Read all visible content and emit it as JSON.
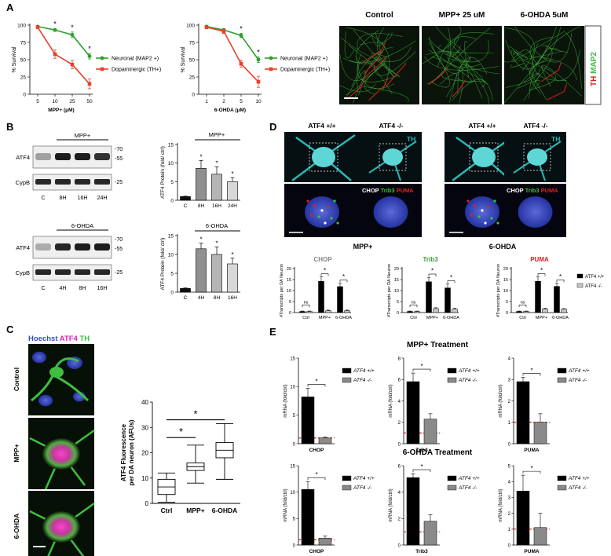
{
  "panels": {
    "A": "A",
    "B": "B",
    "C": "C",
    "D": "D",
    "E": "E"
  },
  "colors": {
    "neuronal": "#2ca02c",
    "dopaminergic": "#e8402a",
    "ko_bar": "#8a8a8a",
    "wt_bar": "#000000",
    "ctrl_line": "#e02020",
    "ap": "#2bb5b5",
    "th_red": "#e02020",
    "map2_green": "#3fbf3f",
    "puma_red": "#d62020",
    "trib3_green": "#3a9a3a",
    "chop_gray": "#888888",
    "hoechst_blue": "#3050d0",
    "atf4_magenta": "#e020c0"
  },
  "panelA": {
    "ylabel": "% Survival",
    "charts": [
      {
        "xlabel": "MPP+ (μM)",
        "ticks": [
          "5",
          "10",
          "25",
          "50"
        ],
        "yticks": [
          "0",
          "25",
          "50",
          "75",
          "100"
        ],
        "series": [
          {
            "name": "Neuronal (MAP2 +)",
            "values": [
              98,
              93,
              86,
              55
            ],
            "err": [
              1,
              2,
              4,
              4
            ],
            "star": [
              false,
              true,
              true,
              true
            ]
          },
          {
            "name": "Dopaminergic (TH+)",
            "values": [
              97,
              58,
              43,
              15
            ],
            "err": [
              1,
              6,
              6,
              7
            ],
            "star": [
              false,
              false,
              false,
              false
            ]
          }
        ]
      },
      {
        "xlabel": "6-OHDA (μM)",
        "ticks": [
          "1",
          "2",
          "5",
          "10"
        ],
        "yticks": [
          "0",
          "25",
          "50",
          "75",
          "100"
        ],
        "series": [
          {
            "name": "Neuronal (MAP2 +)",
            "values": [
              98,
              93,
              85,
              50
            ],
            "err": [
              1,
              2,
              3,
              4
            ],
            "star": [
              false,
              false,
              true,
              true
            ]
          },
          {
            "name": "Dopaminergic (TH+)",
            "values": [
              97,
              91,
              44,
              18
            ],
            "err": [
              1,
              3,
              5,
              8
            ],
            "star": [
              false,
              false,
              false,
              false
            ]
          }
        ]
      }
    ],
    "img_labels": [
      "Control",
      "MPP+ 25 uM",
      "6-OHDA  5uM"
    ],
    "side_th": "TH",
    "side_map2": "MAP2"
  },
  "panelB": {
    "blots": [
      {
        "treat": "MPP+",
        "lanes": [
          "C",
          "8H",
          "16H",
          "24H"
        ],
        "rows": [
          "ATF4",
          "CypB"
        ],
        "mw": [
          "-70",
          "-55",
          "-25"
        ]
      },
      {
        "treat": "6-OHDA",
        "lanes": [
          "C",
          "4H",
          "8H",
          "16H"
        ],
        "rows": [
          "ATF4",
          "CypB"
        ],
        "mw": [
          "-70",
          "-55",
          "-25"
        ]
      }
    ],
    "charts": [
      {
        "treat": "MPP+",
        "ylabel": "ATF4 Protein (fold/ ctrl)",
        "categories": [
          "C",
          "8H",
          "16H",
          "24H"
        ],
        "values": [
          1,
          8.6,
          7.0,
          5.0
        ],
        "err": [
          0.1,
          2.1,
          2.0,
          1.1
        ],
        "star": [
          false,
          true,
          true,
          true
        ],
        "yticks": [
          "0",
          "5",
          "10",
          "15"
        ],
        "ylim": [
          0,
          15
        ],
        "fills": [
          "#111111",
          "#909090",
          "#b5b5b5",
          "#d8d8d8"
        ]
      },
      {
        "treat": "6-OHDA",
        "ylabel": "ATF4 Protein (fold/ ctrl)",
        "categories": [
          "C",
          "4H",
          "8H",
          "16H"
        ],
        "values": [
          1,
          11.5,
          10.0,
          7.5
        ],
        "err": [
          0.1,
          1.5,
          2.0,
          1.5
        ],
        "star": [
          false,
          true,
          true,
          true
        ],
        "yticks": [
          "0",
          "5",
          "10",
          "15"
        ],
        "ylim": [
          0,
          15
        ],
        "fills": [
          "#111111",
          "#909090",
          "#b5b5b5",
          "#d8d8d8"
        ]
      }
    ]
  },
  "panelC": {
    "legend": {
      "hoechst": "Hoechst",
      "atf4": "ATF4",
      "th": "TH"
    },
    "img_labels": [
      "Control",
      "MPP+",
      "6-OHDA"
    ],
    "chart": {
      "type": "box",
      "ylabel_1": "ATF4 Fluorescence",
      "ylabel_2": "per DA neuron (AFUs)",
      "categories": [
        "Ctrl",
        "MPP+",
        "6-OHDA"
      ],
      "yticks": [
        "0",
        "10",
        "20",
        "30",
        "40"
      ],
      "ylim": [
        0,
        40
      ],
      "boxes": [
        {
          "min": 0.5,
          "q1": 3.5,
          "median": 6.5,
          "q3": 9.5,
          "max": 12
        },
        {
          "min": 8,
          "q1": 13,
          "median": 14.5,
          "q3": 16,
          "max": 23
        },
        {
          "min": 9.5,
          "q1": 18,
          "median": 21,
          "q3": 24,
          "max": 31.5
        }
      ],
      "sig_star": "*"
    }
  },
  "panelD": {
    "col_labels": [
      "ATF4 +/+",
      "ATF4 -/-",
      "ATF4 +/+",
      "ATF4 -/-"
    ],
    "th_label": "TH",
    "chop_label": "CHOP",
    "trib3_label": "Trib3",
    "puma_label": "PUMA",
    "treat_labels": [
      "MPP+",
      "6-OHDA"
    ],
    "charts": [
      {
        "title": "CHOP",
        "ylabel": "#Transcripts per DA Neuron",
        "categories": [
          "Ctrl",
          "MPP+",
          "6-OHDA"
        ],
        "yticks": [
          "0",
          "5",
          "10",
          "15",
          "20"
        ],
        "ylim": [
          0,
          20
        ],
        "series": [
          {
            "name": "ATF4 +/+",
            "values": [
              0.5,
              14.2,
              11.8
            ],
            "err": [
              0.2,
              2.0,
              1.5
            ]
          },
          {
            "name": "ATF4 -/-",
            "values": [
              0.5,
              0.8,
              0.8
            ],
            "err": [
              0.2,
              0.3,
              0.3
            ]
          }
        ],
        "sig": [
          "ns",
          "*",
          "*"
        ]
      },
      {
        "title": "Trib3",
        "ylabel": "#Transcripts per DA Neuron",
        "categories": [
          "Ctrl",
          "MPP+",
          "6-OHDA"
        ],
        "yticks": [
          "0",
          "5",
          "10",
          "15",
          "20"
        ],
        "ylim": [
          0,
          20
        ],
        "series": [
          {
            "name": "ATF4 +/+",
            "values": [
              0.5,
              14.0,
              11.2
            ],
            "err": [
              0.2,
              2.0,
              1.8
            ]
          },
          {
            "name": "ATF4 -/-",
            "values": [
              0.5,
              1.8,
              1.6
            ],
            "err": [
              0.2,
              0.4,
              0.4
            ]
          }
        ],
        "sig": [
          "ns",
          "*",
          "*"
        ]
      },
      {
        "title": "PUMA",
        "ylabel": "#Transcripts per DA Neuron",
        "categories": [
          "Ctrl",
          "MPP+",
          "6-OHDA"
        ],
        "yticks": [
          "0",
          "5",
          "10",
          "15",
          "20"
        ],
        "ylim": [
          0,
          20
        ],
        "series": [
          {
            "name": "ATF4 +/+",
            "values": [
              0.5,
              14.2,
              11.9
            ],
            "err": [
              0.2,
              2.0,
              1.5
            ]
          },
          {
            "name": "ATF4 -/-",
            "values": [
              0.5,
              1.7,
              1.5
            ],
            "err": [
              0.2,
              0.3,
              0.3
            ]
          }
        ],
        "sig": [
          "ns",
          "*",
          "*"
        ]
      }
    ]
  },
  "panelE": {
    "titles": [
      "MPP+ Treatment",
      "6-OHDA Treatment"
    ],
    "ylabel": "mRNA (fold/ctrl)",
    "legend": [
      "ATF4 +/+",
      "ATF4 -/-"
    ],
    "charts": [
      {
        "gene": "CHOP",
        "row": 0,
        "yticks": [
          "0",
          "5",
          "10",
          "15"
        ],
        "ylim": [
          0,
          15
        ],
        "values": [
          8.2,
          1.0
        ],
        "err": [
          1.5,
          0.2
        ]
      },
      {
        "gene": "Trib3",
        "row": 0,
        "yticks": [
          "0",
          "2",
          "4",
          "6",
          "8"
        ],
        "ylim": [
          0,
          8
        ],
        "values": [
          5.8,
          2.3
        ],
        "err": [
          0.8,
          0.5
        ]
      },
      {
        "gene": "PUMA",
        "row": 0,
        "yticks": [
          "0",
          "1",
          "2",
          "3",
          "4"
        ],
        "ylim": [
          0,
          4
        ],
        "values": [
          2.9,
          1.0
        ],
        "err": [
          0.2,
          0.4
        ]
      },
      {
        "gene": "CHOP",
        "row": 1,
        "yticks": [
          "0",
          "5",
          "10",
          "15"
        ],
        "ylim": [
          0,
          15
        ],
        "values": [
          10.5,
          1.3
        ],
        "err": [
          1.5,
          0.4
        ]
      },
      {
        "gene": "Trib3",
        "row": 1,
        "yticks": [
          "0",
          "2",
          "4",
          "6"
        ],
        "ylim": [
          0,
          6
        ],
        "values": [
          5.1,
          1.8
        ],
        "err": [
          0.3,
          0.5
        ]
      },
      {
        "gene": "PUMA",
        "row": 1,
        "yticks": [
          "0",
          "1",
          "2",
          "3",
          "4",
          "5"
        ],
        "ylim": [
          0,
          5
        ],
        "values": [
          3.4,
          1.1
        ],
        "err": [
          1.0,
          0.9
        ]
      }
    ]
  },
  "chart_data": [
    {
      "type": "line",
      "xlabel": "MPP+ (μM)",
      "ylabel": "% Survival",
      "categories": [
        "5",
        "10",
        "25",
        "50"
      ],
      "ylim": [
        0,
        100
      ],
      "series": [
        {
          "name": "Neuronal (MAP2 +)",
          "values": [
            98,
            93,
            86,
            55
          ]
        },
        {
          "name": "Dopaminergic (TH+)",
          "values": [
            97,
            58,
            43,
            15
          ]
        }
      ]
    },
    {
      "type": "line",
      "xlabel": "6-OHDA (μM)",
      "ylabel": "% Survival",
      "categories": [
        "1",
        "2",
        "5",
        "10"
      ],
      "ylim": [
        0,
        100
      ],
      "series": [
        {
          "name": "Neuronal (MAP2 +)",
          "values": [
            98,
            93,
            85,
            50
          ]
        },
        {
          "name": "Dopaminergic (TH+)",
          "values": [
            97,
            91,
            44,
            18
          ]
        }
      ]
    },
    {
      "type": "bar",
      "title": "MPP+",
      "ylabel": "ATF4 Protein (fold/ ctrl)",
      "categories": [
        "C",
        "8H",
        "16H",
        "24H"
      ],
      "values": [
        1,
        8.6,
        7.0,
        5.0
      ],
      "ylim": [
        0,
        15
      ]
    },
    {
      "type": "bar",
      "title": "6-OHDA",
      "ylabel": "ATF4 Protein (fold/ ctrl)",
      "categories": [
        "C",
        "4H",
        "8H",
        "16H"
      ],
      "values": [
        1,
        11.5,
        10.0,
        7.5
      ],
      "ylim": [
        0,
        15
      ]
    },
    {
      "type": "box",
      "ylabel": "ATF4 Fluorescence per DA neuron (AFUs)",
      "categories": [
        "Ctrl",
        "MPP+",
        "6-OHDA"
      ],
      "medians": [
        6.5,
        14.5,
        21
      ],
      "ylim": [
        0,
        40
      ]
    },
    {
      "type": "bar",
      "title": "CHOP",
      "ylabel": "#Transcripts per DA Neuron",
      "categories": [
        "Ctrl",
        "MPP+",
        "6-OHDA"
      ],
      "series": [
        {
          "name": "ATF4 +/+",
          "values": [
            0.5,
            14.2,
            11.8
          ]
        },
        {
          "name": "ATF4 -/-",
          "values": [
            0.5,
            0.8,
            0.8
          ]
        }
      ],
      "ylim": [
        0,
        20
      ]
    },
    {
      "type": "bar",
      "title": "Trib3",
      "ylabel": "#Transcripts per DA Neuron",
      "categories": [
        "Ctrl",
        "MPP+",
        "6-OHDA"
      ],
      "series": [
        {
          "name": "ATF4 +/+",
          "values": [
            0.5,
            14.0,
            11.2
          ]
        },
        {
          "name": "ATF4 -/-",
          "values": [
            0.5,
            1.8,
            1.6
          ]
        }
      ],
      "ylim": [
        0,
        20
      ]
    },
    {
      "type": "bar",
      "title": "PUMA",
      "ylabel": "#Transcripts per DA Neuron",
      "categories": [
        "Ctrl",
        "MPP+",
        "6-OHDA"
      ],
      "series": [
        {
          "name": "ATF4 +/+",
          "values": [
            0.5,
            14.2,
            11.9
          ]
        },
        {
          "name": "ATF4 -/-",
          "values": [
            0.5,
            1.7,
            1.5
          ]
        }
      ],
      "ylim": [
        0,
        20
      ]
    },
    {
      "type": "bar",
      "title": "MPP+ Treatment",
      "ylabel": "mRNA (fold/ctrl)",
      "groups": [
        "CHOP",
        "Trib3",
        "PUMA"
      ],
      "series": [
        {
          "name": "ATF4 +/+",
          "values": [
            8.2,
            5.8,
            2.9
          ]
        },
        {
          "name": "ATF4 -/-",
          "values": [
            1.0,
            2.3,
            1.0
          ]
        }
      ]
    },
    {
      "type": "bar",
      "title": "6-OHDA Treatment",
      "ylabel": "mRNA (fold/ctrl)",
      "groups": [
        "CHOP",
        "Trib3",
        "PUMA"
      ],
      "series": [
        {
          "name": "ATF4 +/+",
          "values": [
            10.5,
            5.1,
            3.4
          ]
        },
        {
          "name": "ATF4 -/-",
          "values": [
            1.3,
            1.8,
            1.1
          ]
        }
      ]
    }
  ]
}
